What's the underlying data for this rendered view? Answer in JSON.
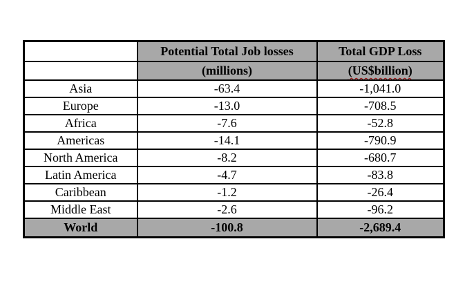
{
  "page": {
    "background_color": "#ffffff"
  },
  "colors": {
    "header_row_bg": "#a8a8a8",
    "total_row_bg": "#a8a8a8",
    "table_border": "#000000",
    "text": "#000000",
    "spellcheck_underline": "#a00000"
  },
  "table": {
    "header": {
      "region_col_label": "",
      "job_losses_title": "Potential Total Job losses",
      "job_losses_unit": "(millions)",
      "gdp_loss_title": "Total GDP Loss",
      "gdp_loss_unit": "(US$billion)"
    },
    "rows": [
      {
        "region": "Asia",
        "job_losses_millions": "-63.4",
        "gdp_loss_usd_billion": "-1,041.0"
      },
      {
        "region": "Europe",
        "job_losses_millions": "-13.0",
        "gdp_loss_usd_billion": "-708.5"
      },
      {
        "region": "Africa",
        "job_losses_millions": "-7.6",
        "gdp_loss_usd_billion": "-52.8"
      },
      {
        "region": "Americas",
        "job_losses_millions": "-14.1",
        "gdp_loss_usd_billion": "-790.9"
      },
      {
        "region": "North America",
        "job_losses_millions": "-8.2",
        "gdp_loss_usd_billion": "-680.7"
      },
      {
        "region": "Latin America",
        "job_losses_millions": "-4.7",
        "gdp_loss_usd_billion": "-83.8"
      },
      {
        "region": "Caribbean",
        "job_losses_millions": "-1.2",
        "gdp_loss_usd_billion": "-26.4"
      },
      {
        "region": "Middle East",
        "job_losses_millions": "-2.6",
        "gdp_loss_usd_billion": "-96.2"
      }
    ],
    "total_row": {
      "region": "World",
      "job_losses_millions": "-100.8",
      "gdp_loss_usd_billion": "-2,689.4"
    }
  }
}
